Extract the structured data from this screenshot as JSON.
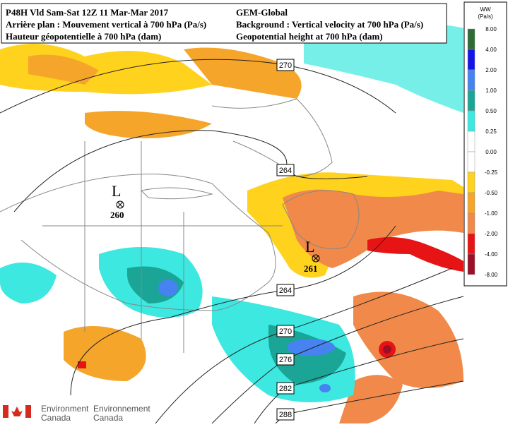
{
  "header": {
    "left": [
      "P48H Vld Sam-Sat 12Z 11 Mar-Mar 2017",
      "Arrière plan : Mouvement vertical à 700 hPa (Pa/s)",
      "Hauteur géopotentielle à 700 hPa (dam)"
    ],
    "right": [
      "GEM-Global",
      "Background : Vertical velocity at 700 hPa (Pa/s)",
      "Geopotential height at 700 hPa (dam)"
    ]
  },
  "legend": {
    "title": "WW",
    "unit": "(Pa/s)",
    "levels": [
      "8.00",
      "4.00",
      "2.00",
      "1.00",
      "0.50",
      "0.25",
      "0.00",
      "-0.25",
      "-0.50",
      "-1.00",
      "-2.00",
      "-4.00",
      "-8.00"
    ],
    "colors": [
      "#2f6b35",
      "#1414e6",
      "#4682f0",
      "#1aa596",
      "#3ce8e0",
      "#ffffff",
      "#ffffff",
      "#ffd21e",
      "#f5a52a",
      "#f0894a",
      "#e61414",
      "#9b1028"
    ]
  },
  "contours": [
    "270",
    "264",
    "264",
    "270",
    "276",
    "282",
    "288"
  ],
  "lows": [
    {
      "symbol": "L",
      "height": "260"
    },
    {
      "symbol": "L",
      "height": "261"
    }
  ],
  "logo": {
    "en": [
      "Environment",
      "Canada"
    ],
    "fr": [
      "Environnement",
      "Canada"
    ]
  }
}
